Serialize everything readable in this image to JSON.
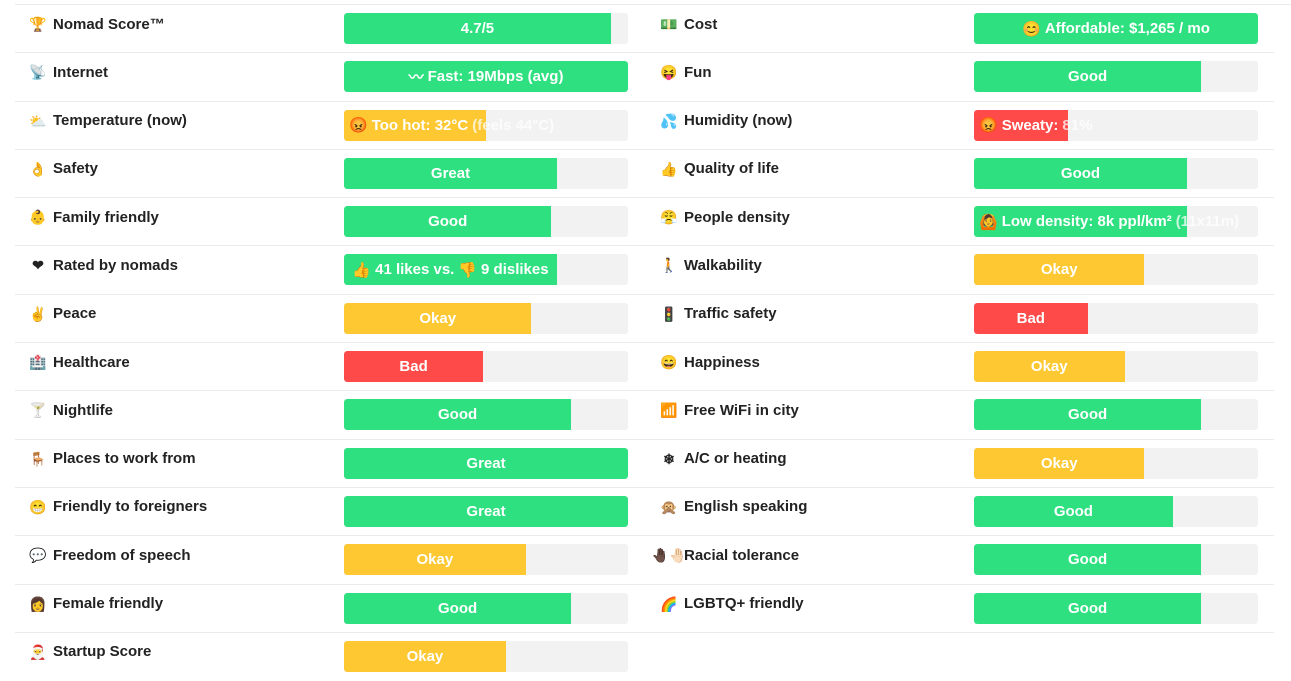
{
  "colors": {
    "green": "#2fe080",
    "yellow": "#fdc832",
    "red": "#ff4a4a",
    "track": "#f2f2f2"
  },
  "rows": [
    {
      "left": {
        "icon": "trophy-icon",
        "glyph": "🏆",
        "label": "Nomad Score™",
        "bar_text": "4.7/5",
        "level": 0.94,
        "color": "green"
      },
      "right": {
        "icon": "money-icon",
        "glyph": "💵",
        "label": "Cost",
        "bar_icon": "smile-icon",
        "bar_glyph": "😊",
        "bar_text": "Affordable: $1,265 / mo",
        "level": 1.0,
        "color": "green"
      }
    },
    {
      "left": {
        "icon": "satellite-icon",
        "glyph": "📡",
        "label": "Internet",
        "bar_icon": "speed-icon",
        "bar_glyph": "〰",
        "bar_text": "Fast: 19Mbps (avg)",
        "level": 1.0,
        "color": "green"
      },
      "right": {
        "icon": "fun-icon",
        "glyph": "😝",
        "label": "Fun",
        "bar_text": "Good",
        "level": 0.8,
        "color": "green"
      }
    },
    {
      "left": {
        "icon": "weather-icon",
        "glyph": "⛅",
        "label": "Temperature (now)",
        "bar_icon": "angry-face-icon",
        "bar_glyph": "😡",
        "bar_text": "Too hot: 32°C",
        "bar_dim": "(feels 44°C)",
        "level": 0.5,
        "color": "yellow"
      },
      "right": {
        "icon": "droplets-icon",
        "glyph": "💦",
        "label": "Humidity (now)",
        "bar_icon": "angry-face-icon",
        "bar_glyph": "😡",
        "bar_text": "Sweaty:",
        "bar_dim": "81%",
        "level": 0.33,
        "color": "red"
      }
    },
    {
      "left": {
        "icon": "ok-hand-icon",
        "glyph": "👌",
        "label": "Safety",
        "bar_text": "Great",
        "level": 0.75,
        "color": "green"
      },
      "right": {
        "icon": "thumbs-up-icon",
        "glyph": "👍",
        "label": "Quality of life",
        "bar_text": "Good",
        "level": 0.75,
        "color": "green"
      }
    },
    {
      "left": {
        "icon": "baby-icon",
        "glyph": "👶",
        "label": "Family friendly",
        "bar_text": "Good",
        "level": 0.73,
        "color": "green"
      },
      "right": {
        "icon": "crowd-face-icon",
        "glyph": "😤",
        "label": "People density",
        "bar_icon": "person-icon",
        "bar_glyph": "🙆",
        "bar_text": "Low density: 8k ppl/km²",
        "bar_dim": "(11x11m)",
        "level": 0.75,
        "color": "green"
      }
    },
    {
      "left": {
        "icon": "heart-icon",
        "glyph": "❤",
        "label": "Rated by nomads",
        "bar_icon": "thumbs-up-icon",
        "bar_glyph": "👍",
        "bar_text": "41 likes vs.",
        "bar_icon2": "thumbs-down-icon",
        "bar_glyph2": "👎",
        "bar_text2": "9 dislikes",
        "level": 0.75,
        "color": "green"
      },
      "right": {
        "icon": "walking-icon",
        "glyph": "🚶",
        "label": "Walkability",
        "bar_text": "Okay",
        "level": 0.6,
        "color": "yellow"
      }
    },
    {
      "left": {
        "icon": "peace-hand-icon",
        "glyph": "✌",
        "label": "Peace",
        "bar_text": "Okay",
        "level": 0.66,
        "color": "yellow"
      },
      "right": {
        "icon": "traffic-light-icon",
        "glyph": "🚦",
        "label": "Traffic safety",
        "bar_text": "Bad",
        "level": 0.4,
        "color": "red"
      }
    },
    {
      "left": {
        "icon": "hospital-icon",
        "glyph": "🏥",
        "label": "Healthcare",
        "bar_text": "Bad",
        "level": 0.49,
        "color": "red"
      },
      "right": {
        "icon": "happy-face-icon",
        "glyph": "😄",
        "label": "Happiness",
        "bar_text": "Okay",
        "level": 0.53,
        "color": "yellow"
      }
    },
    {
      "left": {
        "icon": "cocktail-icon",
        "glyph": "🍸",
        "label": "Nightlife",
        "bar_text": "Good",
        "level": 0.8,
        "color": "green"
      },
      "right": {
        "icon": "wifi-signal-icon",
        "glyph": "📶",
        "label": "Free WiFi in city",
        "bar_text": "Good",
        "level": 0.8,
        "color": "green"
      }
    },
    {
      "left": {
        "icon": "chair-icon",
        "glyph": "🪑",
        "label": "Places to work from",
        "bar_text": "Great",
        "level": 1.0,
        "color": "green"
      },
      "right": {
        "icon": "snowflake-icon",
        "glyph": "❄",
        "label": "A/C or heating",
        "bar_text": "Okay",
        "level": 0.6,
        "color": "yellow"
      }
    },
    {
      "left": {
        "icon": "grin-face-icon",
        "glyph": "😁",
        "label": "Friendly to foreigners",
        "bar_text": "Great",
        "level": 1.0,
        "color": "green"
      },
      "right": {
        "icon": "monkey-icon",
        "glyph": "🙊",
        "label": "English speaking",
        "bar_text": "Good",
        "level": 0.7,
        "color": "green"
      }
    },
    {
      "left": {
        "icon": "speech-bubble-icon",
        "glyph": "💬",
        "label": "Freedom of speech",
        "bar_text": "Okay",
        "level": 0.64,
        "color": "yellow"
      },
      "right": {
        "icon": "hands-icon",
        "glyph": "🤚🏿🤚🏻",
        "label": "Racial tolerance",
        "bar_text": "Good",
        "level": 0.8,
        "color": "green"
      }
    },
    {
      "left": {
        "icon": "woman-icon",
        "glyph": "👩",
        "label": "Female friendly",
        "bar_text": "Good",
        "level": 0.8,
        "color": "green"
      },
      "right": {
        "icon": "rainbow-icon",
        "glyph": "🌈",
        "label": "LGBTQ+ friendly",
        "bar_text": "Good",
        "level": 0.8,
        "color": "green"
      }
    },
    {
      "left": {
        "icon": "santa-icon",
        "glyph": "🎅",
        "label": "Startup Score",
        "bar_text": "Okay",
        "level": 0.57,
        "color": "yellow"
      },
      "right": null
    }
  ]
}
